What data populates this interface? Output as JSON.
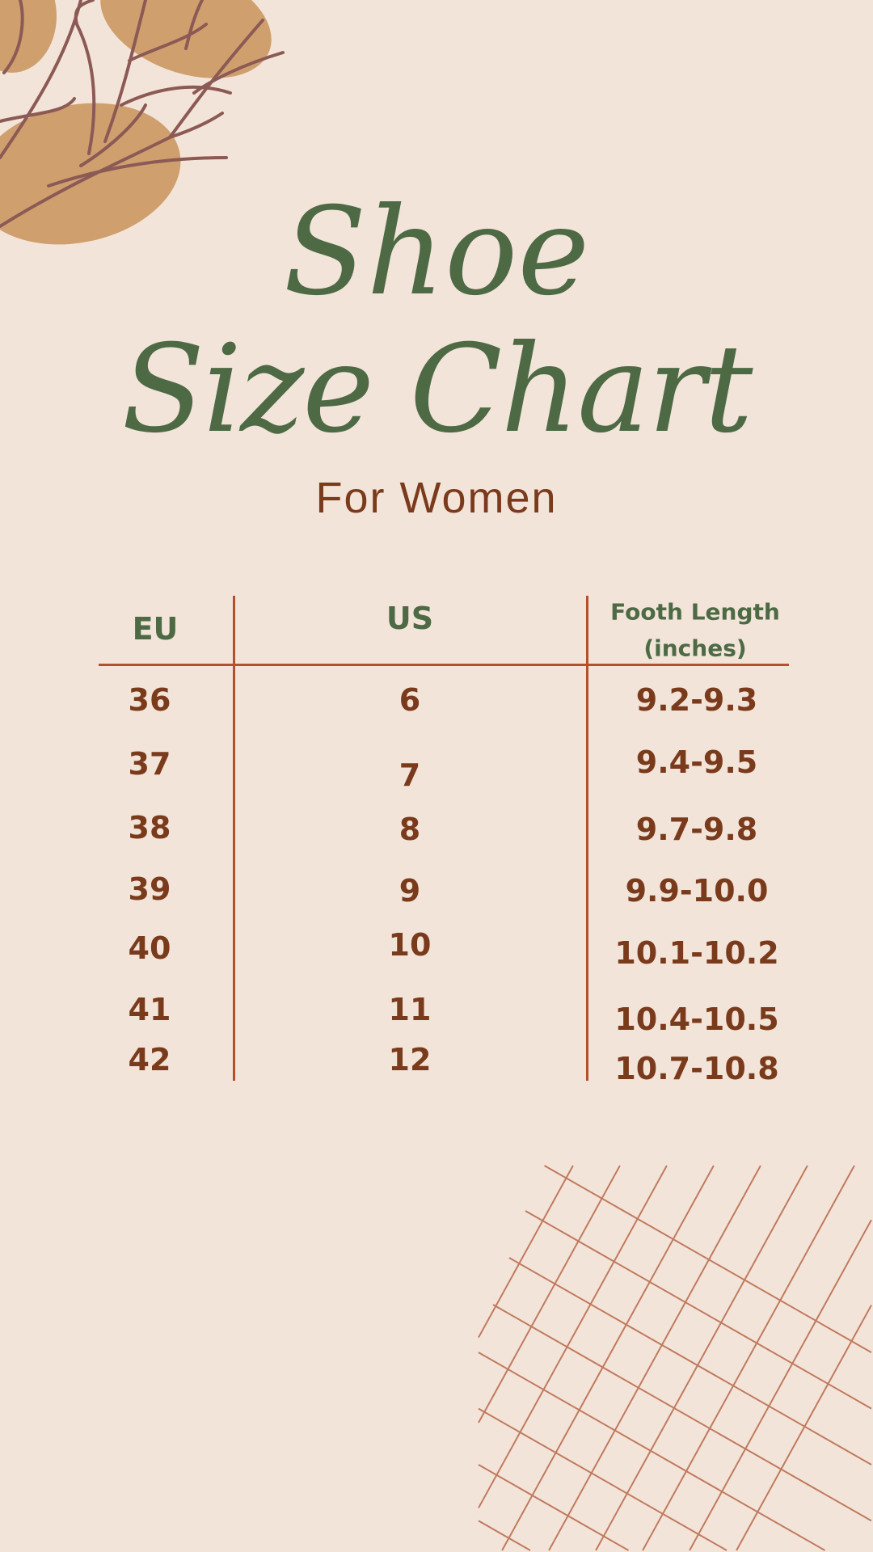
{
  "title": {
    "line1": "Shoe",
    "line2": "Size Chart",
    "subtitle": "For Women"
  },
  "colors": {
    "background": "#f3e4d9",
    "title": "#4d6a45",
    "text": "#7a3a1c",
    "lines": "#b5502a",
    "blob": "#cf9f6e",
    "branch": "#8c5a55"
  },
  "table": {
    "headers": {
      "eu": "EU",
      "us": "US",
      "foot_line1": "Footh Length",
      "foot_line2": "(inches)"
    },
    "rows": [
      {
        "eu": "36",
        "us": "6",
        "foot": "9.2-9.3"
      },
      {
        "eu": "37",
        "us": "7",
        "foot": "9.4-9.5"
      },
      {
        "eu": "38",
        "us": "8",
        "foot": "9.7-9.8"
      },
      {
        "eu": "39",
        "us": "9",
        "foot": "9.9-10.0"
      },
      {
        "eu": "40",
        "us": "10",
        "foot": "10.1-10.2"
      },
      {
        "eu": "41",
        "us": "11",
        "foot": "10.4-10.5"
      },
      {
        "eu": "42",
        "us": "12",
        "foot": "10.7-10.8"
      }
    ]
  }
}
